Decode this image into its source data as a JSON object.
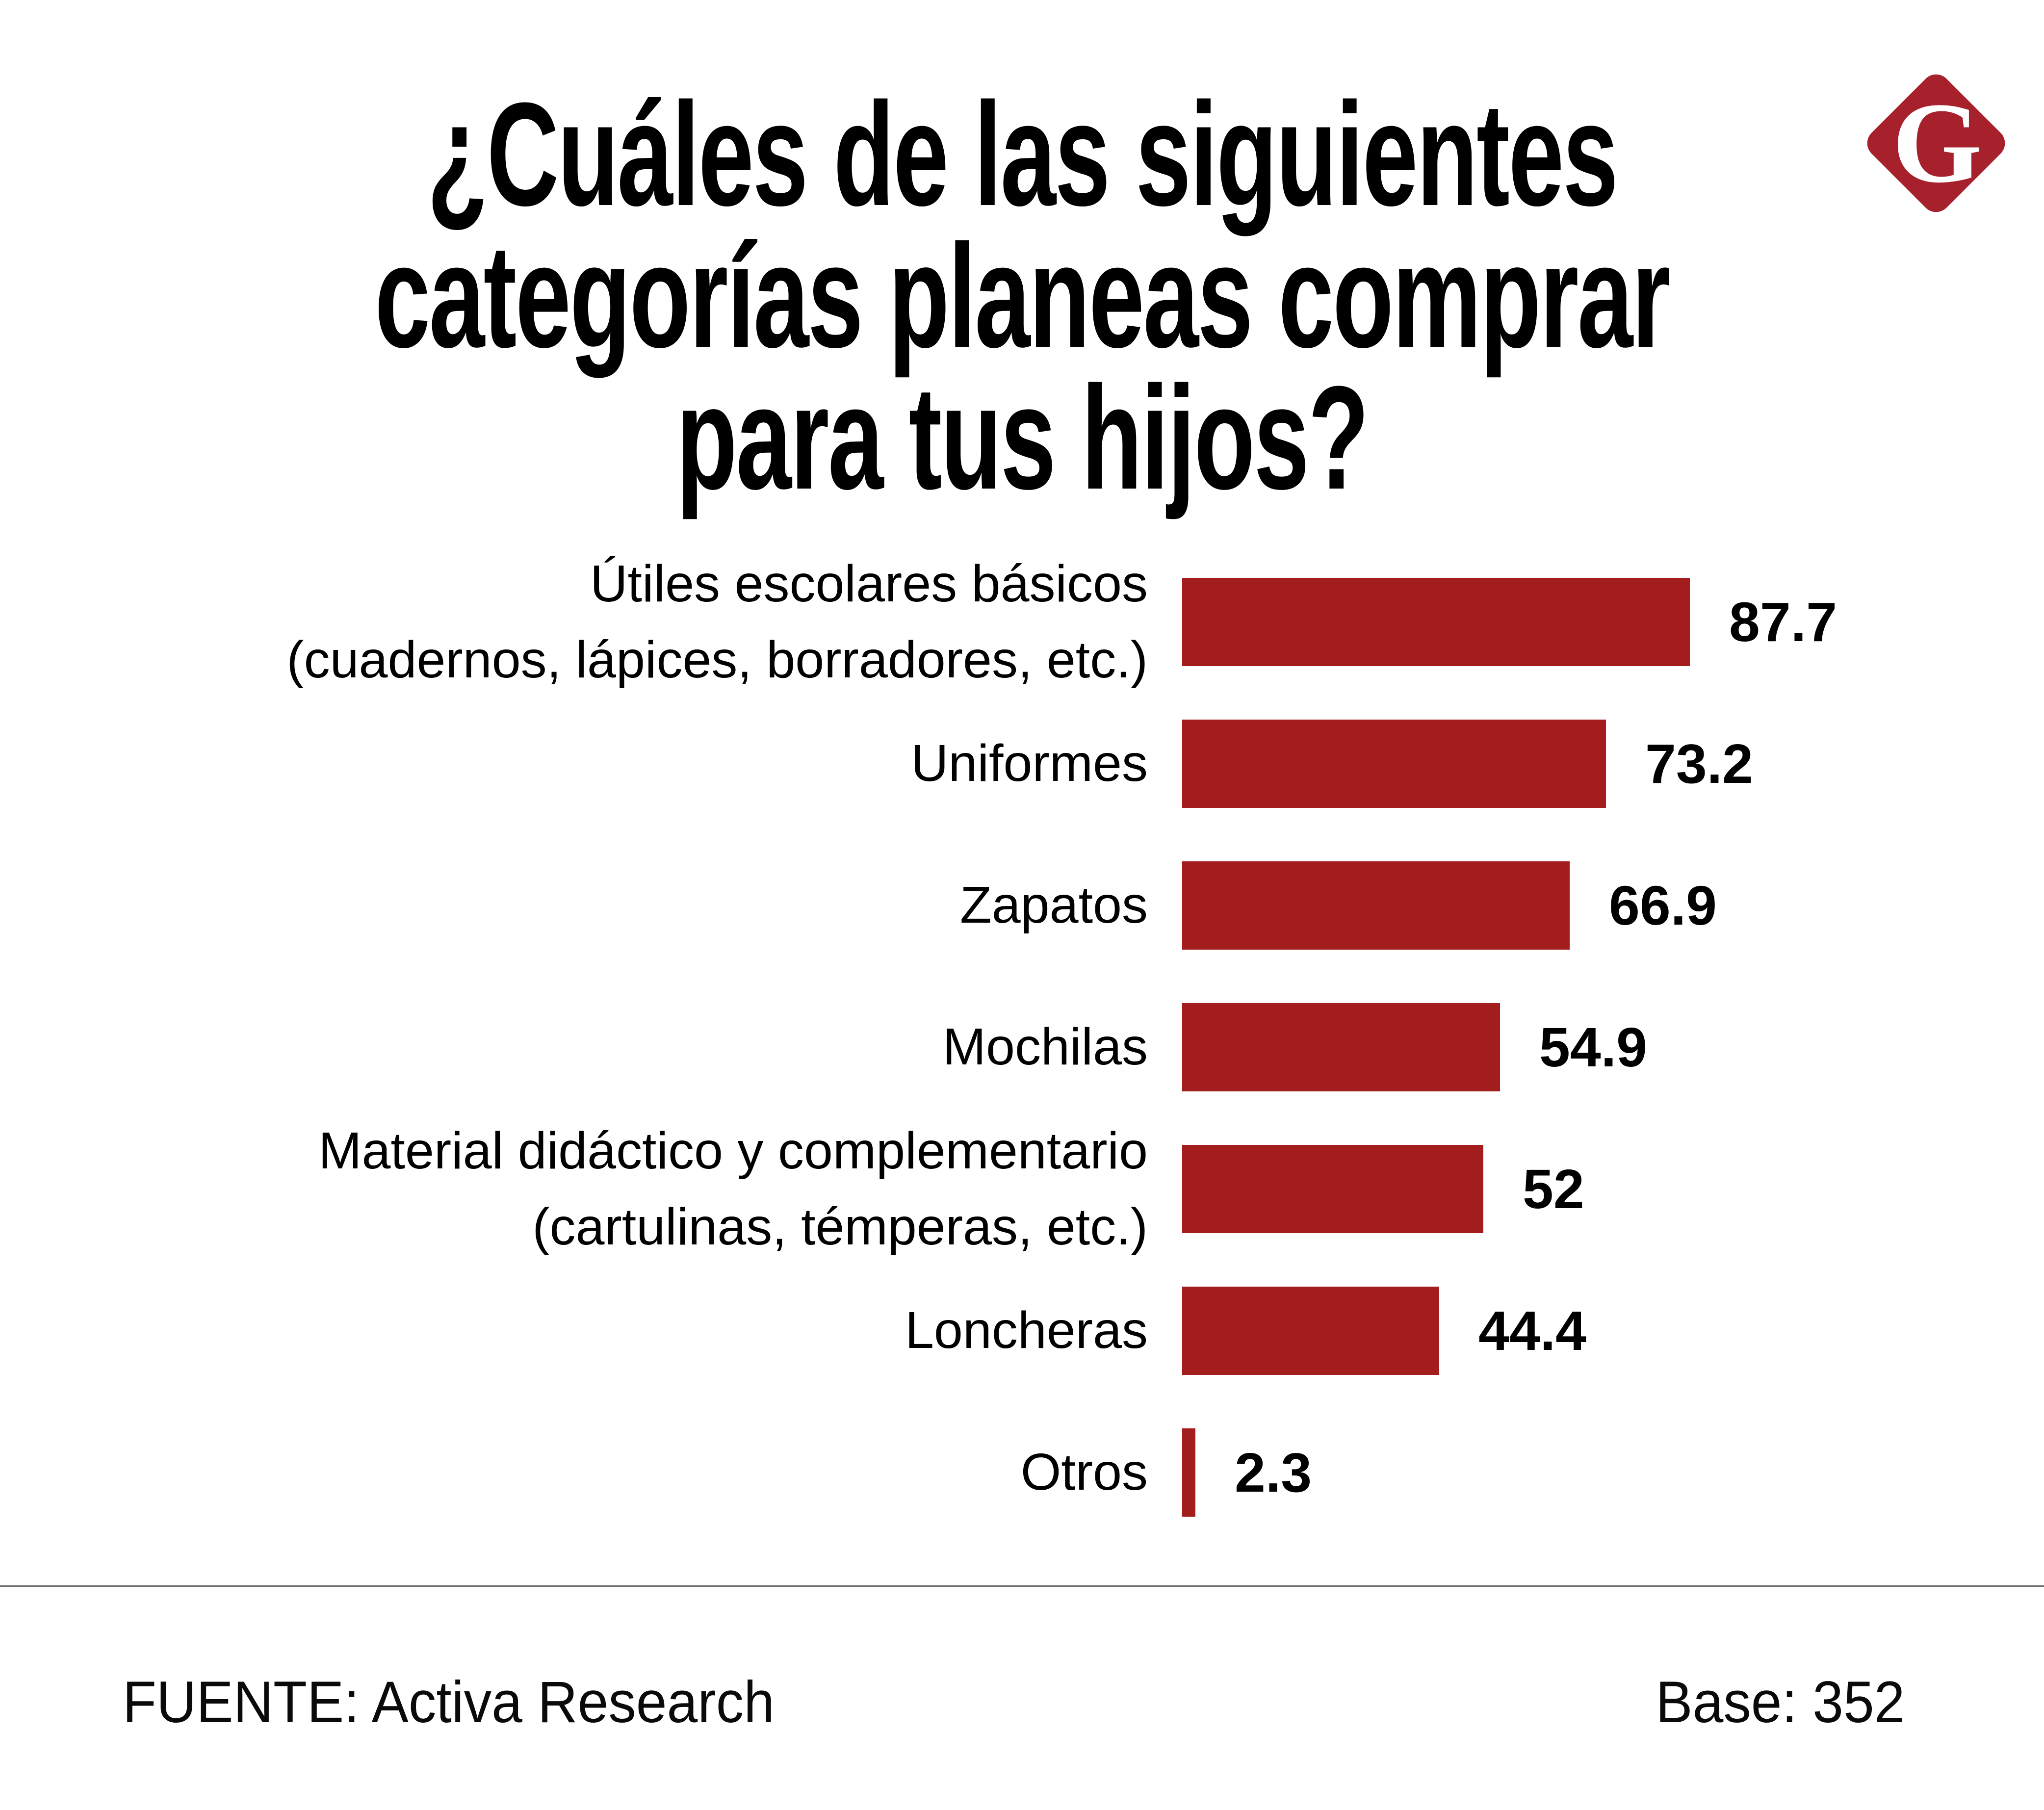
{
  "page": {
    "background": "#ffffff"
  },
  "header": {
    "title_lines": [
      "¿Cuáles de las siguientes",
      "categorías planeas comprar",
      "para tus hijos?"
    ],
    "title_color": "#000000"
  },
  "logo": {
    "letter": "G",
    "diamond_color": "#A6212C",
    "letter_color": "#ffffff"
  },
  "chart_data": {
    "type": "bar",
    "orientation": "horizontal",
    "title": "¿Cuáles de las siguientes categorías planeas comprar para tus hijos?",
    "categories": [
      "Útiles escolares básicos (cuadernos, lápices, borradores, etc.)",
      "Uniformes",
      "Zapatos",
      "Mochilas",
      "Material didáctico y complementario (cartulinas, témperas, etc.)",
      "Loncheras",
      "Otros"
    ],
    "category_label_lines": [
      [
        "Útiles escolares básicos",
        "(cuadernos, lápices, borradores, etc.)"
      ],
      [
        "Uniformes"
      ],
      [
        "Zapatos"
      ],
      [
        "Mochilas"
      ],
      [
        "Material didáctico y complementario",
        "(cartulinas, témperas, etc.)"
      ],
      [
        "Loncheras"
      ],
      [
        "Otros"
      ]
    ],
    "values": [
      87.7,
      73.2,
      66.9,
      54.9,
      52,
      44.4,
      2.3
    ],
    "value_labels": [
      "87.7",
      "73.2",
      "66.9",
      "54.9",
      "52",
      "44.4",
      "2.3"
    ],
    "bar_color": "#A31D1E",
    "xlim": [
      0,
      100
    ],
    "grid": false,
    "legend": false
  },
  "footer": {
    "source": "FUENTE: Activa Research",
    "base": "Base: 352",
    "divider_color": "#6F6F6F"
  }
}
